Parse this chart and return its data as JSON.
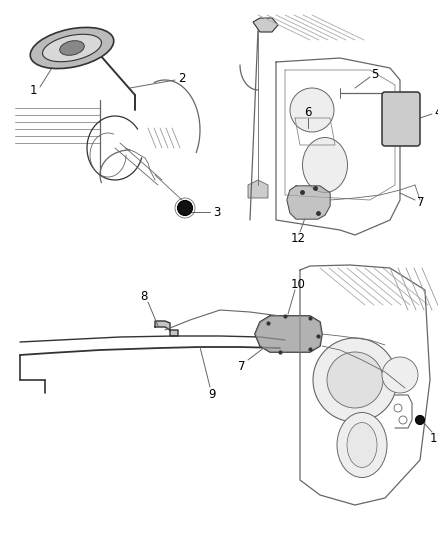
{
  "background_color": "#ffffff",
  "line_color": "#666666",
  "dark_line": "#333333",
  "label_color": "#000000",
  "label_fontsize": 8.5,
  "fig_width": 4.38,
  "fig_height": 5.33,
  "dpi": 100
}
